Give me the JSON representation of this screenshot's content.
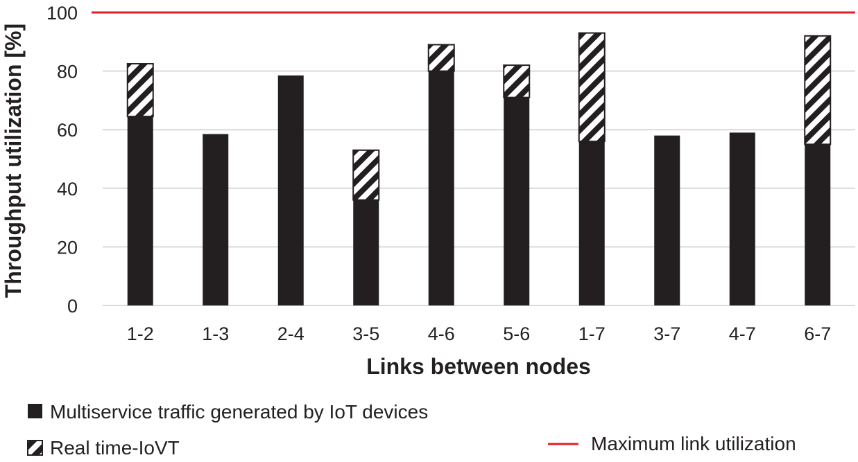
{
  "chart_data": {
    "type": "bar",
    "stacked": true,
    "title": "",
    "xlabel": "Links between nodes",
    "ylabel": "Throughput utilization [%]",
    "ylim": [
      0,
      100
    ],
    "yticks": [
      "0",
      "20",
      "40",
      "60",
      "80",
      "100"
    ],
    "grid": true,
    "categories": [
      "1-2",
      "1-3",
      "2-4",
      "3-5",
      "4-6",
      "5-6",
      "1-7",
      "3-7",
      "4-7",
      "6-7"
    ],
    "series": [
      {
        "name": "Multiservice traffic generated by IoT devices",
        "color": "#231f20",
        "pattern": "solid",
        "values": [
          64.5,
          58.5,
          78.5,
          36,
          80,
          71,
          56,
          58,
          59,
          55
        ]
      },
      {
        "name": "Real time-IoVT",
        "color": "#231f20",
        "pattern": "diagonal-stripes",
        "values": [
          18,
          0,
          0,
          17,
          9,
          11,
          37,
          0,
          0,
          37
        ]
      }
    ],
    "reference_line": {
      "name": "Maximum link utilization",
      "value": 100,
      "color": "#e31e24"
    },
    "legend_position": "bottom"
  }
}
